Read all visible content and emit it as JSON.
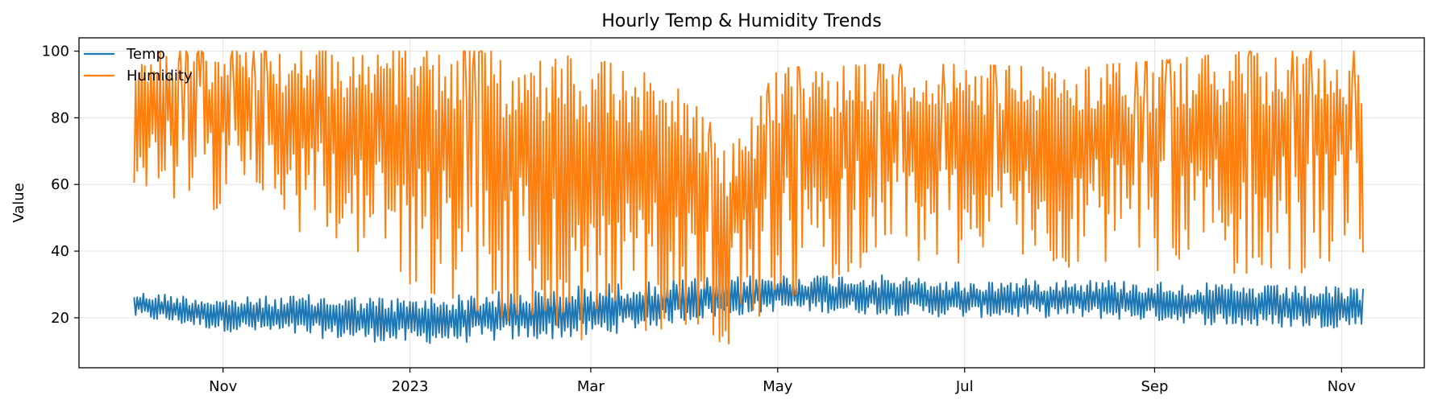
{
  "chart_data": {
    "type": "line",
    "title": "Hourly Temp & Humidity Trends",
    "xlabel": "",
    "ylabel": "Value",
    "x_range": [
      "2022-09-15",
      "2023-11-28"
    ],
    "ylim": [
      5,
      104
    ],
    "grid": true,
    "legend_position": "top-left",
    "x_ticks": [
      {
        "label": "Nov",
        "date": "2022-11-01"
      },
      {
        "label": "2023",
        "date": "2023-01-01"
      },
      {
        "label": "Mar",
        "date": "2023-03-01"
      },
      {
        "label": "May",
        "date": "2023-05-01"
      },
      {
        "label": "Jul",
        "date": "2023-07-01"
      },
      {
        "label": "Sep",
        "date": "2023-09-01"
      },
      {
        "label": "Nov",
        "date": "2023-11-01"
      }
    ],
    "y_ticks": [
      20,
      40,
      60,
      80,
      100
    ],
    "x_start": "2022-10-03",
    "x_end": "2023-11-08",
    "series": [
      {
        "name": "Temp",
        "color": "#1f77b4",
        "summary_daily_range": [
          {
            "date": "2022-10-03",
            "min": 20,
            "max": 28
          },
          {
            "date": "2022-11-01",
            "min": 16,
            "max": 26
          },
          {
            "date": "2022-12-01",
            "min": 14,
            "max": 27
          },
          {
            "date": "2023-01-01",
            "min": 12,
            "max": 26
          },
          {
            "date": "2023-02-01",
            "min": 13,
            "max": 28
          },
          {
            "date": "2023-03-01",
            "min": 14,
            "max": 30
          },
          {
            "date": "2023-04-01",
            "min": 19,
            "max": 32
          },
          {
            "date": "2023-05-01",
            "min": 22,
            "max": 33
          },
          {
            "date": "2023-06-01",
            "min": 21,
            "max": 33
          },
          {
            "date": "2023-07-01",
            "min": 20,
            "max": 31
          },
          {
            "date": "2023-08-01",
            "min": 20,
            "max": 32
          },
          {
            "date": "2023-09-01",
            "min": 19,
            "max": 31
          },
          {
            "date": "2023-10-01",
            "min": 17,
            "max": 30
          },
          {
            "date": "2023-11-08",
            "min": 17,
            "max": 29
          }
        ]
      },
      {
        "name": "Humidity",
        "color": "#ff7f0e",
        "summary_daily_range": [
          {
            "date": "2022-10-03",
            "min": 60,
            "max": 100
          },
          {
            "date": "2022-11-01",
            "min": 50,
            "max": 100
          },
          {
            "date": "2022-12-01",
            "min": 45,
            "max": 100
          },
          {
            "date": "2023-01-01",
            "min": 30,
            "max": 100
          },
          {
            "date": "2023-02-01",
            "min": 18,
            "max": 100
          },
          {
            "date": "2023-03-01",
            "min": 12,
            "max": 98
          },
          {
            "date": "2023-04-01",
            "min": 18,
            "max": 90
          },
          {
            "date": "2023-04-15",
            "min": 11,
            "max": 70
          },
          {
            "date": "2023-05-01",
            "min": 25,
            "max": 95
          },
          {
            "date": "2023-06-01",
            "min": 35,
            "max": 96
          },
          {
            "date": "2023-07-01",
            "min": 36,
            "max": 96
          },
          {
            "date": "2023-08-01",
            "min": 34,
            "max": 95
          },
          {
            "date": "2023-09-01",
            "min": 34,
            "max": 97
          },
          {
            "date": "2023-10-01",
            "min": 32,
            "max": 100
          },
          {
            "date": "2023-11-08",
            "min": 35,
            "max": 100
          }
        ]
      }
    ]
  }
}
